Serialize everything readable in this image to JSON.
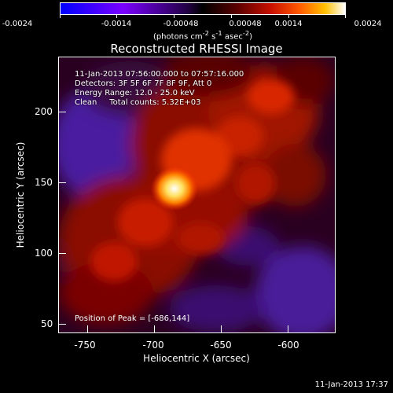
{
  "colorbar": {
    "ticks": [
      "-0.0024",
      "-0.0014",
      "-0.00048",
      "0.00048",
      "0.0014",
      "0.0024"
    ],
    "units_text": "(photons cm",
    "units_sup1": "-2",
    "units_mid": " s",
    "units_sup2": "-1",
    "units_tail": " asec",
    "units_sup3": "-2",
    "units_close": ")"
  },
  "title": "Reconstructed RHESSI Image",
  "info": {
    "time": "11-Jan-2013 07:56:00.000 to 07:57:16.000",
    "detectors": "Detectors: 3F 5F 6F 7F 8F 9F, Att 0",
    "energy": "Energy Range: 12.0 - 25.0 keV",
    "clean": "Clean     Total counts: 5.32E+03"
  },
  "peak": "Position of Peak = [-686,144]",
  "axes": {
    "xlabel": "Heliocentric X (arcsec)",
    "ylabel": "Heliocentric Y (arcsec)",
    "xticks": [
      "-750",
      "-700",
      "-650",
      "-600"
    ],
    "yticks": [
      "200",
      "150",
      "100",
      "50"
    ]
  },
  "timestamp": "11-Jan-2013 17:37",
  "colors": {
    "min": "#0000ff",
    "max": "#ffffff",
    "background": "#000000"
  }
}
